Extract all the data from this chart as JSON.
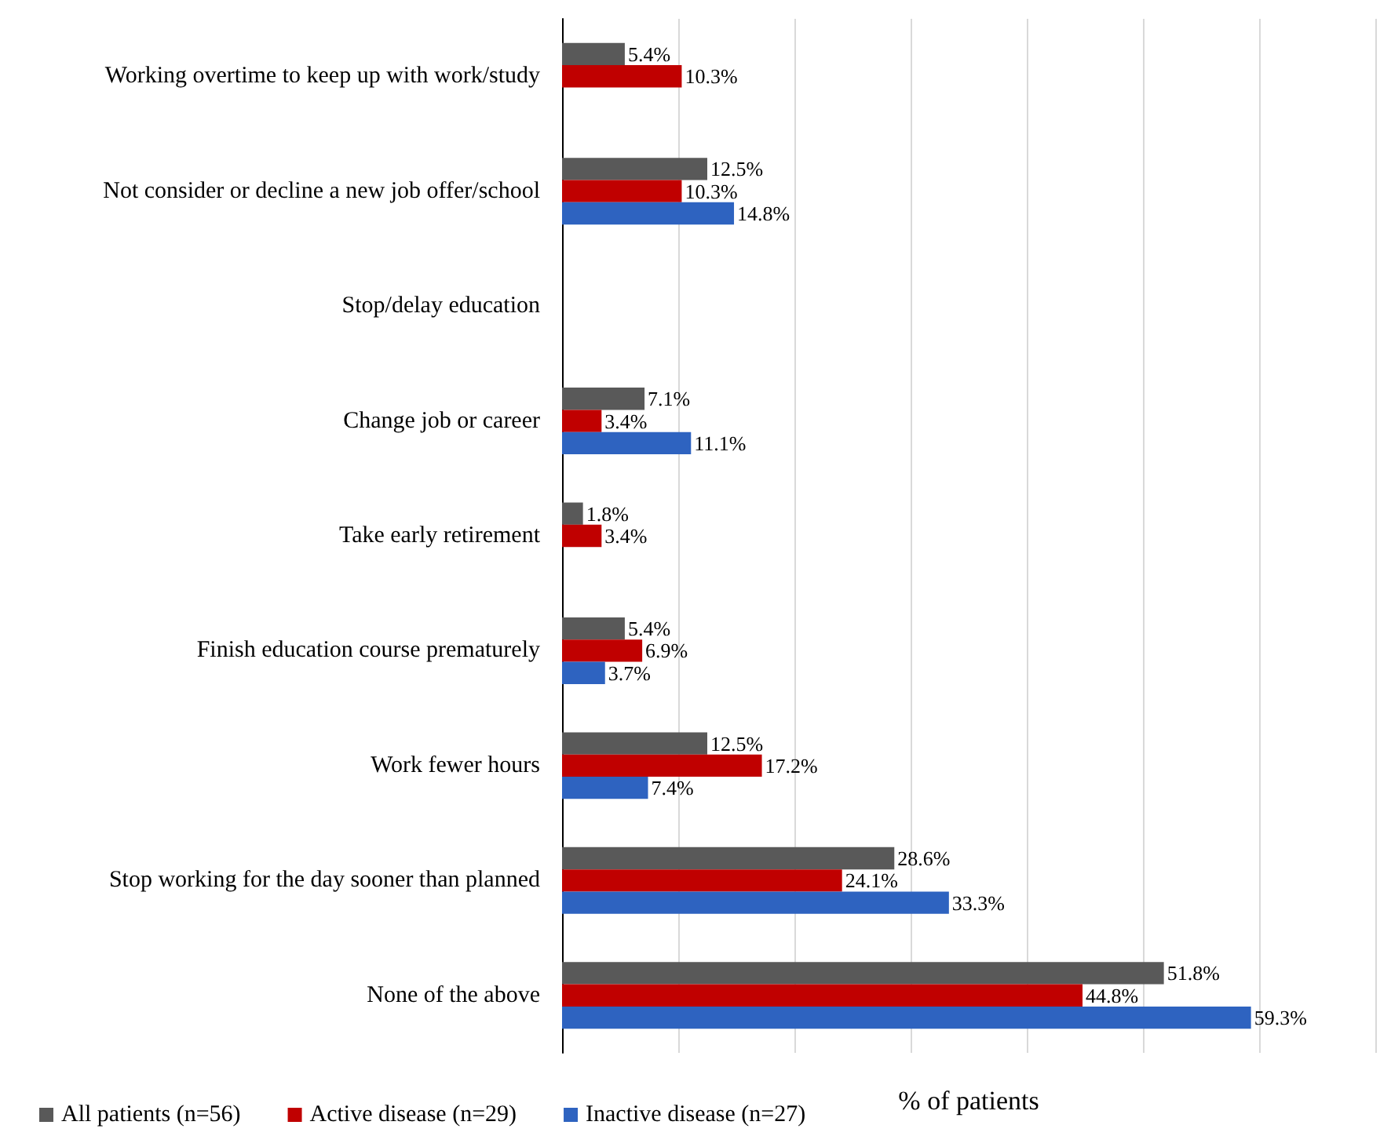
{
  "chart_data": {
    "type": "bar",
    "orientation": "horizontal",
    "xlabel": "% of patients",
    "categories": [
      "Working overtime to keep up with work/study",
      "Not consider or decline a new job offer/school",
      "Stop/delay education",
      "Change job or career",
      "Take early retirement",
      "Finish education course prematurely",
      "Work fewer hours",
      "Stop working for the day sooner than planned",
      "None of the above"
    ],
    "series": [
      {
        "name": "All patients (n=56)",
        "color": "#595959",
        "values": [
          5.4,
          12.5,
          null,
          7.1,
          1.8,
          5.4,
          12.5,
          28.6,
          51.8
        ],
        "value_labels": [
          "5.4%",
          "12.5%",
          null,
          "7.1%",
          "1.8%",
          "5.4%",
          "12.5%",
          "28.6%",
          "51.8%"
        ]
      },
      {
        "name": "Active disease (n=29)",
        "color": "#c00000",
        "values": [
          10.3,
          10.3,
          null,
          3.4,
          3.4,
          6.9,
          17.2,
          24.1,
          44.8
        ],
        "value_labels": [
          "10.3%",
          "10.3%",
          null,
          "3.4%",
          "3.4%",
          "6.9%",
          "17.2%",
          "24.1%",
          "44.8%"
        ]
      },
      {
        "name": "Inactive disease (n=27)",
        "color": "#2e63c0",
        "values": [
          null,
          14.8,
          null,
          11.1,
          null,
          3.7,
          7.4,
          33.3,
          59.3
        ],
        "value_labels": [
          null,
          "14.8%",
          null,
          "11.1%",
          null,
          "3.7%",
          "7.4%",
          "33.3%",
          "59.3%"
        ]
      }
    ],
    "xlim": [
      0,
      70
    ],
    "xticks": [
      {
        "value": 0,
        "label": null
      },
      {
        "value": 10,
        "label": null
      },
      {
        "value": 20,
        "label": null
      },
      {
        "value": 30,
        "label": null
      },
      {
        "value": 40,
        "label": null
      },
      {
        "value": 50,
        "label": null
      },
      {
        "value": 60,
        "label": null
      },
      {
        "value": 70,
        "label": null
      }
    ],
    "tick_labels": "y",
    "grid": "x",
    "legend": "bottom"
  }
}
